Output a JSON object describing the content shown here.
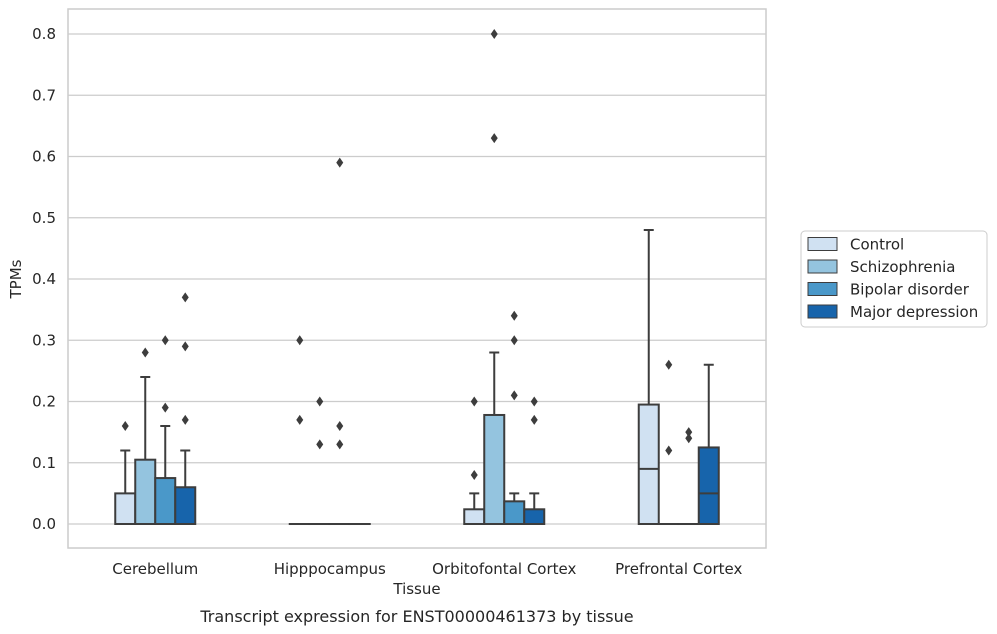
{
  "caption": "Transcript expression for ENST00000461373 by tissue",
  "chart_data": {
    "type": "box",
    "xlabel": "Tissue",
    "ylabel": "TPMs",
    "ylim": [
      -0.04,
      0.84
    ],
    "yticks": [
      "0.0",
      "0.1",
      "0.2",
      "0.3",
      "0.4",
      "0.5",
      "0.6",
      "0.7",
      "0.8"
    ],
    "grid": true,
    "legend_position": "right",
    "categories": [
      "Cerebellum",
      "Hipppocampus",
      "Orbitofontal Cortex",
      "Prefrontal Cortex"
    ],
    "series": [
      {
        "name": "Control",
        "color": "#d0e1f2",
        "boxes": [
          {
            "whislo": 0.0,
            "q1": 0.0,
            "med": 0.0,
            "q3": 0.05,
            "whishi": 0.12,
            "fliers": [
              0.16
            ]
          },
          {
            "whislo": 0.0,
            "q1": 0.0,
            "med": 0.0,
            "q3": 0.0,
            "whishi": 0.0,
            "fliers": [
              0.3,
              0.17
            ]
          },
          {
            "whislo": 0.0,
            "q1": 0.0,
            "med": 0.0,
            "q3": 0.024,
            "whishi": 0.05,
            "fliers": [
              0.2,
              0.08
            ]
          },
          {
            "whislo": 0.0,
            "q1": 0.0,
            "med": 0.09,
            "q3": 0.195,
            "whishi": 0.48,
            "fliers": []
          }
        ]
      },
      {
        "name": "Schizophrenia",
        "color": "#94c4df",
        "boxes": [
          {
            "whislo": 0.0,
            "q1": 0.0,
            "med": 0.0,
            "q3": 0.105,
            "whishi": 0.24,
            "fliers": [
              0.28
            ]
          },
          {
            "whislo": 0.0,
            "q1": 0.0,
            "med": 0.0,
            "q3": 0.0,
            "whishi": 0.0,
            "fliers": [
              0.2,
              0.13
            ]
          },
          {
            "whislo": 0.0,
            "q1": 0.0,
            "med": 0.0,
            "q3": 0.178,
            "whishi": 0.28,
            "fliers": [
              0.8,
              0.63
            ]
          },
          {
            "whislo": 0.0,
            "q1": 0.0,
            "med": 0.0,
            "q3": 0.0,
            "whishi": 0.0,
            "fliers": [
              0.26,
              0.12
            ]
          }
        ]
      },
      {
        "name": "Bipolar disorder",
        "color": "#4a98c9",
        "boxes": [
          {
            "whislo": 0.0,
            "q1": 0.0,
            "med": 0.0,
            "q3": 0.075,
            "whishi": 0.16,
            "fliers": [
              0.3,
              0.19
            ]
          },
          {
            "whislo": 0.0,
            "q1": 0.0,
            "med": 0.0,
            "q3": 0.0,
            "whishi": 0.0,
            "fliers": [
              0.59,
              0.16,
              0.13
            ]
          },
          {
            "whislo": 0.0,
            "q1": 0.0,
            "med": 0.0,
            "q3": 0.037,
            "whishi": 0.05,
            "fliers": [
              0.34,
              0.3,
              0.21
            ]
          },
          {
            "whislo": 0.0,
            "q1": 0.0,
            "med": 0.0,
            "q3": 0.0,
            "whishi": 0.0,
            "fliers": [
              0.15,
              0.14
            ]
          }
        ]
      },
      {
        "name": "Major depression",
        "color": "#1764ab",
        "boxes": [
          {
            "whislo": 0.0,
            "q1": 0.0,
            "med": 0.0,
            "q3": 0.06,
            "whishi": 0.12,
            "fliers": [
              0.37,
              0.29,
              0.17
            ]
          },
          {
            "whislo": 0.0,
            "q1": 0.0,
            "med": 0.0,
            "q3": 0.0,
            "whishi": 0.0,
            "fliers": []
          },
          {
            "whislo": 0.0,
            "q1": 0.0,
            "med": 0.0,
            "q3": 0.024,
            "whishi": 0.05,
            "fliers": [
              0.2,
              0.17
            ]
          },
          {
            "whislo": 0.0,
            "q1": 0.0,
            "med": 0.05,
            "q3": 0.125,
            "whishi": 0.26,
            "fliers": []
          }
        ]
      }
    ]
  }
}
